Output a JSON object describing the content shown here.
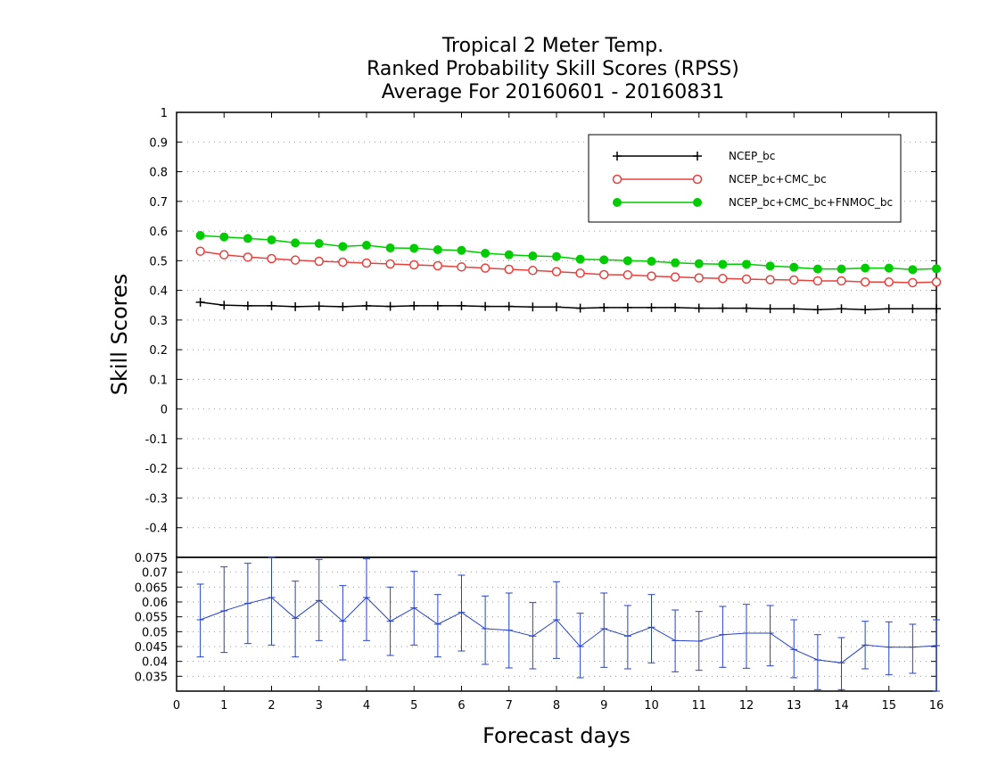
{
  "chart_data": [
    {
      "type": "line",
      "title": [
        "Tropical 2 Meter Temp.",
        "Ranked Probability Skill Scores (RPSS)",
        "Average For 20160601 - 20160831"
      ],
      "xlabel": "Forecast days",
      "ylabel": "Skill Scores",
      "xlim": [
        0,
        16
      ],
      "ylim": [
        -0.5,
        1
      ],
      "x_ticks": [
        "0",
        "1",
        "2",
        "3",
        "4",
        "5",
        "6",
        "7",
        "8",
        "9",
        "10",
        "11",
        "12",
        "13",
        "14",
        "15",
        "16"
      ],
      "y_ticks": [
        "1",
        "0.9",
        "0.8",
        "0.7",
        "0.6",
        "0.5",
        "0.4",
        "0.3",
        "0.2",
        "0.1",
        "0",
        "-0.1",
        "-0.2",
        "-0.3",
        "-0.4"
      ],
      "grid": true,
      "legend_position": "top-right",
      "x": [
        0.5,
        1,
        1.5,
        2,
        2.5,
        3,
        3.5,
        4,
        4.5,
        5,
        5.5,
        6,
        6.5,
        7,
        7.5,
        8,
        8.5,
        9,
        9.5,
        10,
        10.5,
        11,
        11.5,
        12,
        12.5,
        13,
        13.5,
        14,
        14.5,
        15,
        15.5,
        16
      ],
      "series": [
        {
          "name": "NCEP_bc",
          "color": "#000000",
          "marker": "plus",
          "values": [
            0.36,
            0.35,
            0.348,
            0.348,
            0.345,
            0.347,
            0.345,
            0.348,
            0.346,
            0.348,
            0.348,
            0.348,
            0.346,
            0.346,
            0.344,
            0.344,
            0.34,
            0.342,
            0.342,
            0.342,
            0.342,
            0.34,
            0.34,
            0.34,
            0.338,
            0.338,
            0.335,
            0.338,
            0.335,
            0.338,
            0.338,
            0.338
          ]
        },
        {
          "name": "NCEP_bc+CMC_bc",
          "color": "#e8413d",
          "marker": "open-circle",
          "values": [
            0.532,
            0.52,
            0.512,
            0.507,
            0.502,
            0.498,
            0.495,
            0.492,
            0.489,
            0.486,
            0.483,
            0.479,
            0.475,
            0.471,
            0.467,
            0.463,
            0.458,
            0.453,
            0.452,
            0.448,
            0.445,
            0.442,
            0.44,
            0.438,
            0.436,
            0.435,
            0.432,
            0.432,
            0.428,
            0.428,
            0.426,
            0.428
          ]
        },
        {
          "name": "NCEP_bc+CMC_bc+FNMOC_bc",
          "color": "#00cc00",
          "marker": "filled-circle",
          "values": [
            0.585,
            0.58,
            0.575,
            0.57,
            0.56,
            0.558,
            0.548,
            0.552,
            0.543,
            0.542,
            0.537,
            0.535,
            0.525,
            0.52,
            0.516,
            0.514,
            0.505,
            0.503,
            0.5,
            0.498,
            0.493,
            0.49,
            0.488,
            0.488,
            0.482,
            0.478,
            0.472,
            0.472,
            0.475,
            0.475,
            0.47,
            0.473
          ]
        }
      ]
    },
    {
      "type": "line",
      "error_bars": true,
      "xlim": [
        0,
        16
      ],
      "ylim": [
        0.03,
        0.075
      ],
      "y_ticks": [
        "0.075",
        "0.07",
        "0.065",
        "0.06",
        "0.055",
        "0.05",
        "0.045",
        "0.04",
        "0.035"
      ],
      "grid": true,
      "color": "#2742c8",
      "x": [
        0.5,
        1,
        1.5,
        2,
        2.5,
        3,
        3.5,
        4,
        4.5,
        5,
        5.5,
        6,
        6.5,
        7,
        7.5,
        8,
        8.5,
        9,
        9.5,
        10,
        10.5,
        11,
        11.5,
        12,
        12.5,
        13,
        13.5,
        14,
        14.5,
        15,
        15.5,
        16
      ],
      "values": [
        0.054,
        0.057,
        0.0595,
        0.0615,
        0.0545,
        0.0605,
        0.0535,
        0.0615,
        0.0535,
        0.058,
        0.0525,
        0.0565,
        0.051,
        0.0505,
        0.0485,
        0.054,
        0.045,
        0.051,
        0.0485,
        0.0515,
        0.047,
        0.0468,
        0.049,
        0.0495,
        0.0495,
        0.044,
        0.0405,
        0.0395,
        0.0455,
        0.0448,
        0.0448,
        0.0453
      ],
      "error_low": [
        0.0415,
        0.043,
        0.046,
        0.0455,
        0.0415,
        0.047,
        0.0405,
        0.047,
        0.042,
        0.0455,
        0.0415,
        0.0435,
        0.039,
        0.0378,
        0.0375,
        0.041,
        0.0345,
        0.038,
        0.0375,
        0.0395,
        0.0365,
        0.037,
        0.038,
        0.0377,
        0.0385,
        0.0345,
        0.0305,
        0.0305,
        0.0375,
        0.0355,
        0.036,
        0.03
      ],
      "error_high": [
        0.066,
        0.0718,
        0.073,
        0.0755,
        0.067,
        0.0743,
        0.0655,
        0.0745,
        0.065,
        0.0703,
        0.0625,
        0.069,
        0.062,
        0.063,
        0.0598,
        0.0668,
        0.0562,
        0.063,
        0.0588,
        0.0625,
        0.0573,
        0.0568,
        0.0585,
        0.0592,
        0.0588,
        0.054,
        0.049,
        0.048,
        0.0535,
        0.0533,
        0.0525,
        0.054
      ]
    }
  ]
}
